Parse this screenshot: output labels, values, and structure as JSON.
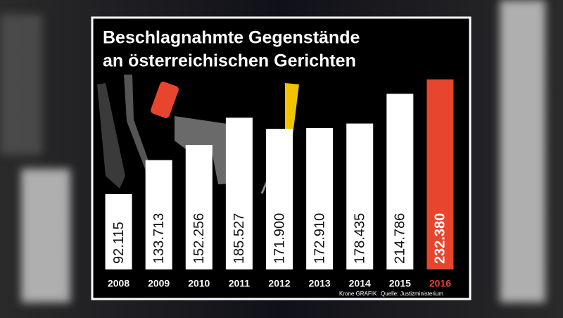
{
  "chart_data": {
    "type": "bar",
    "title": [
      "Beschlagnahmte Gegenstände",
      "an österreichischen Gerichten"
    ],
    "categories": [
      "2008",
      "2009",
      "2010",
      "2011",
      "2012",
      "2013",
      "2014",
      "2015",
      "2016"
    ],
    "values": [
      92115,
      133713,
      152256,
      185527,
      171900,
      172910,
      178435,
      214786,
      232380
    ],
    "value_labels": [
      "92.115",
      "133.713",
      "152.256",
      "185.527",
      "171.900",
      "172.910",
      "178.435",
      "214.786",
      "232.380"
    ],
    "colors": [
      "#ffffff",
      "#ffffff",
      "#ffffff",
      "#ffffff",
      "#ffffff",
      "#ffffff",
      "#ffffff",
      "#ffffff",
      "#e8452e"
    ],
    "ylim": [
      0,
      240000
    ],
    "credit": "Krone GRAFIK",
    "source": "Quelle: Justizministerium"
  }
}
